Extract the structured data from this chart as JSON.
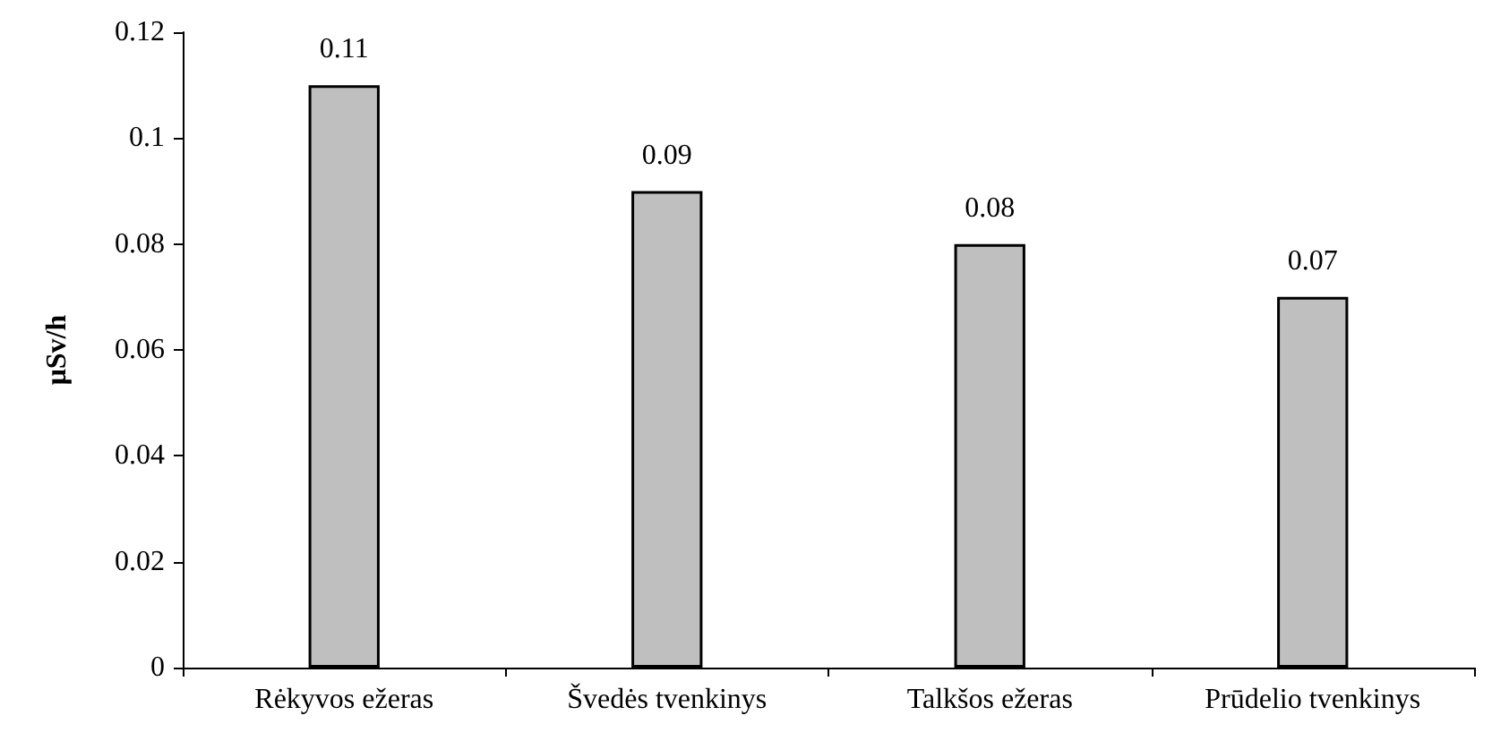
{
  "chart_data": {
    "type": "bar",
    "ylabel": "μSv/h",
    "categories": [
      "Rėkyvos ežeras",
      "Švedės tvenkinys",
      "Talkšos ežeras",
      "Prūdelio tvenkinys"
    ],
    "values": [
      0.11,
      0.09,
      0.08,
      0.07
    ],
    "color": "#bfbfbf",
    "ylim": [
      0,
      0.12
    ],
    "yticks": [
      0,
      0.02,
      0.04,
      0.06,
      0.08,
      0.1,
      0.12
    ],
    "data_labels": true,
    "grid": false
  }
}
